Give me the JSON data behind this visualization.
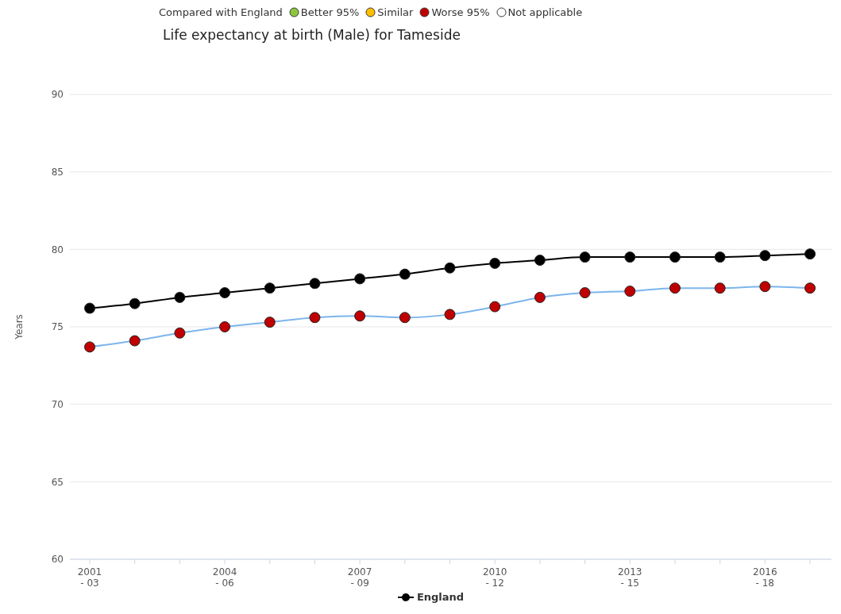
{
  "chart_data": {
    "type": "line",
    "title": "Life expectancy at birth (Male) for Tameside",
    "ylabel": "Years",
    "legend_title": "Compared with England",
    "annotations": [
      "Better 95%",
      "Similar",
      "Worse 95%",
      "Not applicable"
    ],
    "categories": [
      "2001\n- 03",
      null,
      null,
      "2004\n- 06",
      null,
      null,
      "2007\n- 09",
      null,
      null,
      "2010\n- 12",
      null,
      null,
      "2013\n- 15",
      null,
      null,
      "2016\n- 18",
      null
    ],
    "series": [
      {
        "color": "#7cb5ec",
        "colors": [
          "#c00000",
          "#c00000",
          "#c00000",
          "#c00000",
          "#c00000",
          "#c00000",
          "#c00000",
          "#c00000",
          "#c00000",
          "#c00000",
          "#c00000",
          "#c00000",
          "#c00000",
          "#c00000",
          "#c00000",
          "#c00000",
          "#c00000"
        ],
        "values": [
          73.7,
          74.1,
          74.6,
          75.0,
          75.3,
          75.6,
          75.7,
          75.6,
          75.8,
          76.3,
          76.9,
          77.2,
          77.3,
          77.5,
          77.5,
          77.6,
          77.5
        ]
      },
      {
        "name": "England",
        "color": "#000000",
        "values": [
          76.2,
          76.5,
          76.9,
          77.2,
          77.5,
          77.8,
          78.1,
          78.4,
          78.8,
          79.1,
          79.3,
          79.5,
          79.5,
          79.5,
          79.5,
          79.6,
          79.7
        ]
      }
    ],
    "ylim": [
      60,
      90
    ],
    "yticks": [
      60,
      65,
      70,
      75,
      80,
      85,
      90
    ],
    "grid": "y",
    "legend": "bottom",
    "marker": "circle",
    "line_style": "solid"
  }
}
